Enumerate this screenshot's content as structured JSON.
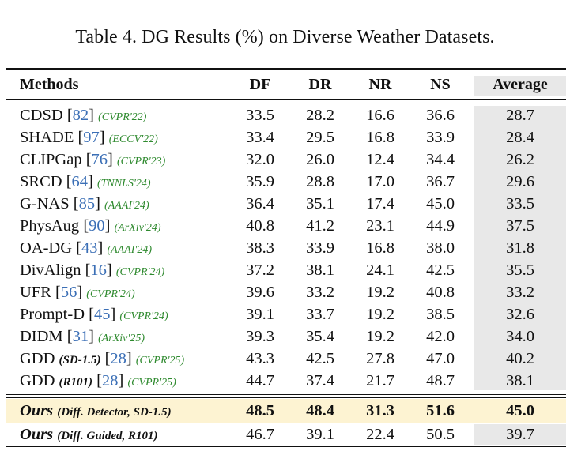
{
  "caption": "Table 4. DG Results (%) on Diverse Weather Datasets.",
  "headers": {
    "method": "Methods",
    "df": "DF",
    "dr": "DR",
    "nr": "NR",
    "ns": "NS",
    "avg": "Average"
  },
  "rows": [
    {
      "name": "CDSD",
      "ref": "82",
      "venue": "(CVPR'22)",
      "df": "33.5",
      "dr": "28.2",
      "nr": "16.6",
      "ns": "36.6",
      "avg": "28.7"
    },
    {
      "name": "SHADE",
      "ref": "97",
      "venue": "(ECCV'22)",
      "df": "33.4",
      "dr": "29.5",
      "nr": "16.8",
      "ns": "33.9",
      "avg": "28.4"
    },
    {
      "name": "CLIPGap",
      "ref": "76",
      "venue": "(CVPR'23)",
      "df": "32.0",
      "dr": "26.0",
      "nr": "12.4",
      "ns": "34.4",
      "avg": "26.2"
    },
    {
      "name": "SRCD",
      "ref": "64",
      "venue": "(TNNLS'24)",
      "df": "35.9",
      "dr": "28.8",
      "nr": "17.0",
      "ns": "36.7",
      "avg": "29.6"
    },
    {
      "name": "G-NAS",
      "ref": "85",
      "venue": "(AAAI'24)",
      "df": "36.4",
      "dr": "35.1",
      "nr": "17.4",
      "ns": "45.0",
      "avg": "33.5"
    },
    {
      "name": "PhysAug",
      "ref": "90",
      "venue": "(ArXiv'24)",
      "df": "40.8",
      "dr": "41.2",
      "nr": "23.1",
      "ns": "44.9",
      "avg": "37.5"
    },
    {
      "name": "OA-DG",
      "ref": "43",
      "venue": "(AAAI'24)",
      "df": "38.3",
      "dr": "33.9",
      "nr": "16.8",
      "ns": "38.0",
      "avg": "31.8"
    },
    {
      "name": "DivAlign",
      "ref": "16",
      "venue": "(CVPR'24)",
      "df": "37.2",
      "dr": "38.1",
      "nr": "24.1",
      "ns": "42.5",
      "avg": "35.5"
    },
    {
      "name": "UFR",
      "ref": "56",
      "venue": "(CVPR'24)",
      "df": "39.6",
      "dr": "33.2",
      "nr": "19.2",
      "ns": "40.8",
      "avg": "33.2"
    },
    {
      "name": "Prompt-D",
      "ref": "45",
      "venue": "(CVPR'24)",
      "df": "39.1",
      "dr": "33.7",
      "nr": "19.2",
      "ns": "38.5",
      "avg": "32.6"
    },
    {
      "name": "DIDM",
      "ref": "31",
      "venue": "(ArXiv'25)",
      "df": "39.3",
      "dr": "35.4",
      "nr": "19.2",
      "ns": "42.0",
      "avg": "34.0"
    },
    {
      "name": "GDD",
      "note": "(SD-1.5)",
      "ref": "28",
      "venue": "(CVPR'25)",
      "df": "43.3",
      "dr": "42.5",
      "nr": "27.8",
      "ns": "47.0",
      "avg": "40.2"
    },
    {
      "name": "GDD",
      "note": "(R101)",
      "ref": "28",
      "venue": "(CVPR'25)",
      "df": "44.7",
      "dr": "37.4",
      "nr": "21.7",
      "ns": "48.7",
      "avg": "38.1"
    }
  ],
  "ours": [
    {
      "name": "Ours",
      "note": "(Diff. Detector, SD-1.5)",
      "df": "48.5",
      "dr": "48.4",
      "nr": "31.3",
      "ns": "51.6",
      "avg": "45.0",
      "bold": true,
      "highlight_color": "#fdf3d2"
    },
    {
      "name": "Ours",
      "note": "(Diff. Guided, R101)",
      "df": "46.7",
      "dr": "39.1",
      "nr": "22.4",
      "ns": "50.5",
      "avg": "39.7",
      "bold": false
    }
  ],
  "colors": {
    "ref": "#3b6fb6",
    "venue": "#2f8a2f",
    "average_column_bg": "#e8e8e8"
  }
}
